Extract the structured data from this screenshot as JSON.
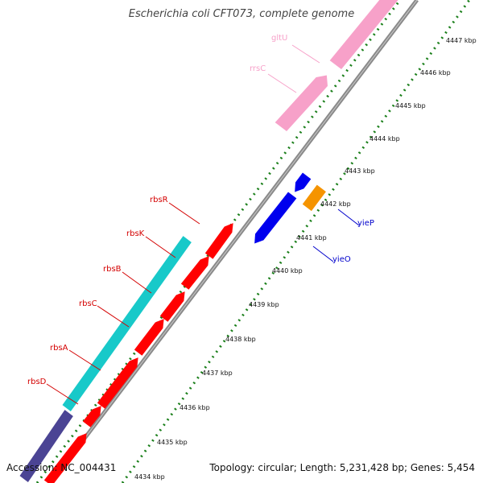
{
  "title": "Escherichia coli CFT073, complete genome",
  "footer": {
    "accession": "Accession: NC_004431",
    "summary": "Topology: circular; Length: 5,231,428 bp; Genes: 5,454"
  },
  "scale_labels": [
    "4434 kbp",
    "4435 kbp",
    "4436 kbp",
    "4437 kbp",
    "4438 kbp",
    "4439 kbp",
    "4440 kbp",
    "4441 kbp",
    "4442 kbp",
    "4443 kbp",
    "4444 kbp",
    "4445 kbp",
    "4446 kbp",
    "4447 kbp"
  ],
  "genes": {
    "gltU": "gltU",
    "rrsC": "rrsC",
    "rbsR": "rbsR",
    "rbsK": "rbsK",
    "rbsB": "rbsB",
    "rbsC": "rbsC",
    "rbsA": "rbsA",
    "rbsD": "rbsD",
    "yieP": "yieP",
    "yieO": "yieO"
  },
  "colors": {
    "rRNA": "#f7a1c9",
    "cds_red": "#ff0000",
    "cds_teal": "#18c9c9",
    "cds_blue": "#0000ee",
    "cds_orange": "#f59400",
    "cds_purple": "#4b4494",
    "tick_green": "#1a7f1a",
    "backbone": "#808080",
    "label_red": "#d40000",
    "label_pink": "#f7a1c9",
    "label_blue": "#0000cc"
  }
}
